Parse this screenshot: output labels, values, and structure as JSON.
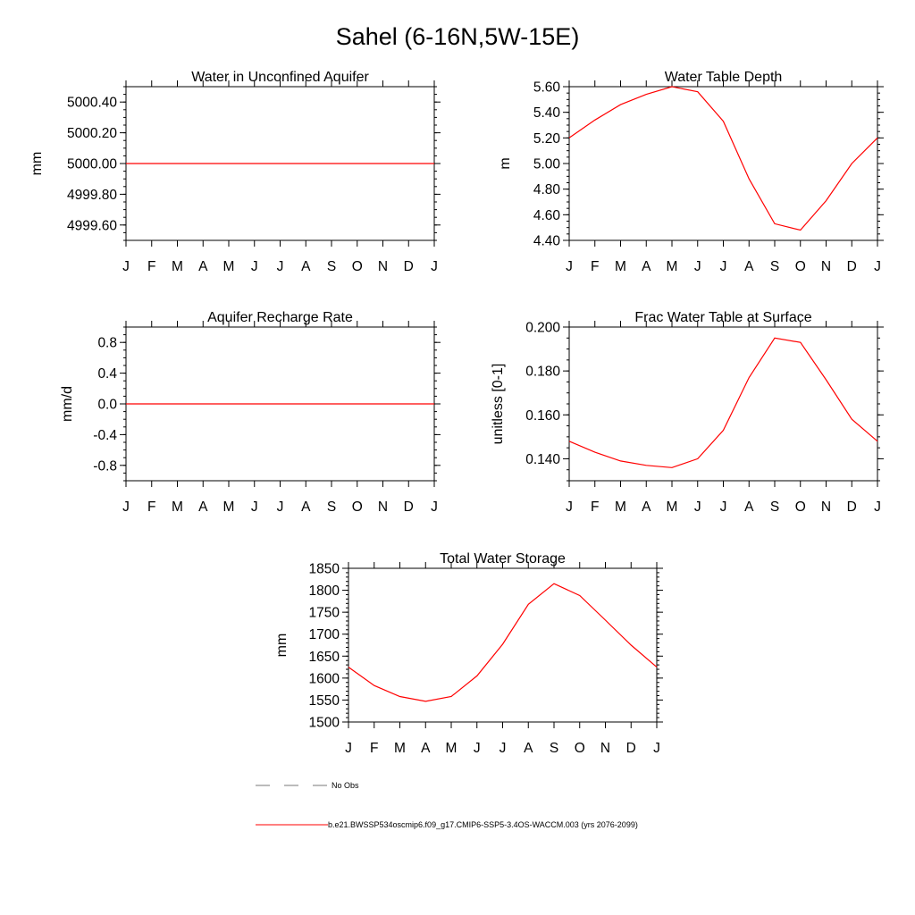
{
  "figure": {
    "title": "Sahel (6-16N,5W-15E)"
  },
  "colors": {
    "model_line": "#ff0000",
    "obs_line": "#777777",
    "axes": "#000000"
  },
  "chart_data": [
    {
      "type": "line",
      "id": "unconfined-aquifer",
      "title": "Water in Unconfined Aquifer",
      "xlabel": "",
      "ylabel": "mm",
      "categories": [
        "J",
        "F",
        "M",
        "A",
        "M",
        "J",
        "J",
        "A",
        "S",
        "O",
        "N",
        "D",
        "J"
      ],
      "xlim": [
        0,
        12
      ],
      "ylim": [
        4999.5,
        5000.5
      ],
      "yticks": [
        4999.6,
        4999.8,
        5000.0,
        5000.2,
        5000.4
      ],
      "ytick_labels": [
        "4999.60",
        "4999.80",
        "5000.00",
        "5000.20",
        "5000.40"
      ],
      "yminor": 0.05,
      "series": [
        {
          "name": "b.e21.BWSSP534oscmip6.f09_g17.CMIP6-SSP5-3.4OS-WACCM.003 (yrs 2076-2099)",
          "values": [
            5000,
            5000,
            5000,
            5000,
            5000,
            5000,
            5000,
            5000,
            5000,
            5000,
            5000,
            5000,
            5000
          ]
        }
      ]
    },
    {
      "type": "line",
      "id": "water-table-depth",
      "title": "Water Table Depth",
      "xlabel": "",
      "ylabel": "m",
      "categories": [
        "J",
        "F",
        "M",
        "A",
        "M",
        "J",
        "J",
        "A",
        "S",
        "O",
        "N",
        "D",
        "J"
      ],
      "xlim": [
        0,
        12
      ],
      "ylim": [
        4.4,
        5.6
      ],
      "yticks": [
        4.4,
        4.6,
        4.8,
        5.0,
        5.2,
        5.4,
        5.6
      ],
      "ytick_labels": [
        "4.40",
        "4.60",
        "4.80",
        "5.00",
        "5.20",
        "5.40",
        "5.60"
      ],
      "yminor": 0.05,
      "series": [
        {
          "name": "b.e21.BWSSP534oscmip6.f09_g17.CMIP6-SSP5-3.4OS-WACCM.003 (yrs 2076-2099)",
          "values": [
            5.2,
            5.34,
            5.46,
            5.54,
            5.6,
            5.56,
            5.33,
            4.88,
            4.53,
            4.48,
            4.71,
            5.0,
            5.2
          ]
        }
      ]
    },
    {
      "type": "line",
      "id": "recharge-rate",
      "title": "Aquifer Recharge Rate",
      "xlabel": "",
      "ylabel": "mm/d",
      "categories": [
        "J",
        "F",
        "M",
        "A",
        "M",
        "J",
        "J",
        "A",
        "S",
        "O",
        "N",
        "D",
        "J"
      ],
      "xlim": [
        0,
        12
      ],
      "ylim": [
        -1.0,
        1.0
      ],
      "yticks": [
        -0.8,
        -0.4,
        0.0,
        0.4,
        0.8
      ],
      "ytick_labels": [
        "-0.8",
        "-0.4",
        "0.0",
        "0.4",
        "0.8"
      ],
      "yminor": 0.1,
      "series": [
        {
          "name": "b.e21.BWSSP534oscmip6.f09_g17.CMIP6-SSP5-3.4OS-WACCM.003 (yrs 2076-2099)",
          "values": [
            0,
            0,
            0,
            0,
            0,
            0,
            0,
            0,
            0,
            0,
            0,
            0,
            0
          ]
        }
      ]
    },
    {
      "type": "line",
      "id": "frac-water-table",
      "title": "Frac Water Table at Surface",
      "xlabel": "",
      "ylabel": "unitless [0-1]",
      "categories": [
        "J",
        "F",
        "M",
        "A",
        "M",
        "J",
        "J",
        "A",
        "S",
        "O",
        "N",
        "D",
        "J"
      ],
      "xlim": [
        0,
        12
      ],
      "ylim": [
        0.13,
        0.2
      ],
      "yticks": [
        0.14,
        0.16,
        0.18,
        0.2
      ],
      "ytick_labels": [
        "0.140",
        "0.160",
        "0.180",
        "0.200"
      ],
      "yminor": 0.005,
      "series": [
        {
          "name": "b.e21.BWSSP534oscmip6.f09_g17.CMIP6-SSP5-3.4OS-WACCM.003 (yrs 2076-2099)",
          "values": [
            0.148,
            0.143,
            0.139,
            0.137,
            0.136,
            0.14,
            0.153,
            0.177,
            0.195,
            0.193,
            0.176,
            0.158,
            0.148
          ]
        }
      ]
    },
    {
      "type": "line",
      "id": "total-water-storage",
      "title": "Total Water Storage",
      "xlabel": "",
      "ylabel": "mm",
      "categories": [
        "J",
        "F",
        "M",
        "A",
        "M",
        "J",
        "J",
        "A",
        "S",
        "O",
        "N",
        "D",
        "J"
      ],
      "xlim": [
        0,
        12
      ],
      "ylim": [
        1500,
        1850
      ],
      "yticks": [
        1500,
        1550,
        1600,
        1650,
        1700,
        1750,
        1800,
        1850
      ],
      "ytick_labels": [
        "1500",
        "1550",
        "1600",
        "1650",
        "1700",
        "1750",
        "1800",
        "1850"
      ],
      "yminor": 10,
      "series": [
        {
          "name": "b.e21.BWSSP534oscmip6.f09_g17.CMIP6-SSP5-3.4OS-WACCM.003 (yrs 2076-2099)",
          "values": [
            1625,
            1583,
            1558,
            1547,
            1558,
            1605,
            1677,
            1768,
            1815,
            1788,
            1732,
            1675,
            1625
          ]
        }
      ]
    }
  ],
  "legend": {
    "obs_label": "No Obs",
    "model_label": "b.e21.BWSSP534oscmip6.f09_g17.CMIP6-SSP5-3.4OS-WACCM.003 (yrs 2076-2099)"
  }
}
